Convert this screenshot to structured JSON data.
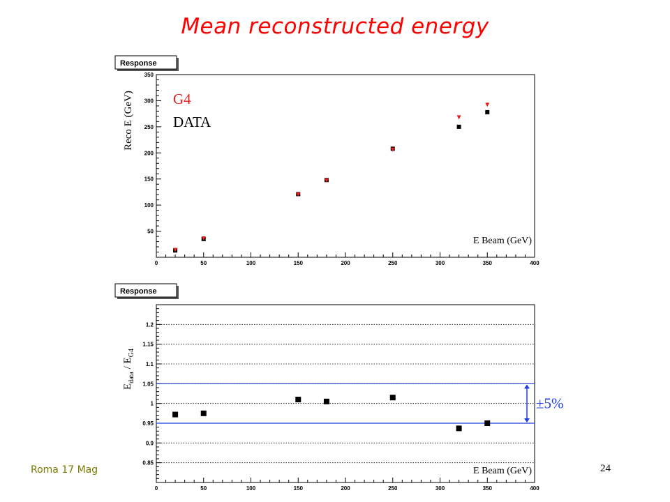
{
  "slide": {
    "title": "Mean reconstructed energy",
    "footer_left": "Roma 17 Mag",
    "page_number": "24"
  },
  "chart_data": [
    {
      "type": "scatter",
      "box_label": "Response",
      "ylabel": "Reco E (GeV)",
      "xlabel": "E Beam (GeV)",
      "xlim": [
        0,
        400
      ],
      "ylim": [
        0,
        350
      ],
      "xticks": [
        "0",
        "50",
        "100",
        "150",
        "200",
        "250",
        "300",
        "350",
        "400"
      ],
      "yticks": [
        "50",
        "100",
        "150",
        "200",
        "250",
        "300",
        "350"
      ],
      "grid": false,
      "legend": [
        {
          "name": "G4",
          "color": "#e8201c"
        },
        {
          "name": "DATA",
          "color": "#000000"
        }
      ],
      "series": [
        {
          "name": "G4",
          "marker": "triangle-down",
          "color": "#e8201c",
          "x": [
            20,
            50,
            150,
            180,
            250,
            320,
            350
          ],
          "y": [
            14,
            36,
            120,
            147,
            206,
            268,
            292
          ]
        },
        {
          "name": "DATA",
          "marker": "square",
          "color": "#000000",
          "x": [
            20,
            50,
            150,
            180,
            250,
            320,
            350
          ],
          "y": [
            13,
            35,
            121,
            148,
            208,
            250,
            278
          ]
        }
      ]
    },
    {
      "type": "scatter",
      "box_label": "Response",
      "ylabel_main": "E",
      "ylabel_sub1": "data",
      "ylabel_sep": " / E",
      "ylabel_sub2": "G4",
      "xlabel": "E Beam (GeV)",
      "xlim": [
        0,
        400
      ],
      "ylim": [
        0.8,
        1.25
      ],
      "xticks": [
        "0",
        "50",
        "100",
        "150",
        "200",
        "250",
        "300",
        "350",
        "400"
      ],
      "yticks": [
        "0.85",
        "0.9",
        "0.95",
        "1",
        "1.05",
        "1.1",
        "1.15",
        "1.2"
      ],
      "grid": true,
      "band": {
        "lower": 0.95,
        "upper": 1.05,
        "label": "±5%",
        "color": "#1f3fe0"
      },
      "series": [
        {
          "marker": "square",
          "color": "#000000",
          "x": [
            20,
            50,
            150,
            180,
            250,
            320,
            350
          ],
          "y": [
            0.972,
            0.975,
            1.01,
            1.005,
            1.015,
            0.937,
            0.95
          ]
        }
      ]
    }
  ]
}
